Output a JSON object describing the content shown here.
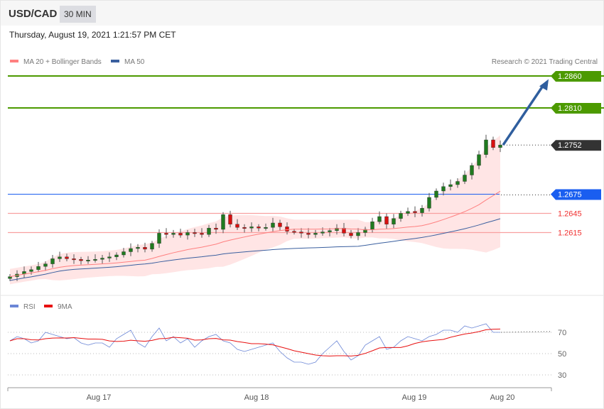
{
  "header": {
    "symbol": "USD/CAD",
    "timeframe": "30 MIN",
    "datetime": "Thursday, August 19, 2021 1:21:57 PM CET"
  },
  "chart_data": [
    {
      "type": "candlestick",
      "legend": [
        {
          "name": "MA 20 + Bollinger Bands",
          "color": "#ff8080"
        },
        {
          "name": "MA 50",
          "color": "#3a5f9f"
        }
      ],
      "credit": "Research © 2021 Trading Central",
      "ylim": [
        1.253,
        1.287
      ],
      "closes": [
        1.2546,
        1.255,
        1.2554,
        1.2557,
        1.2562,
        1.2566,
        1.2574,
        1.2577,
        1.2574,
        1.2573,
        1.2571,
        1.2572,
        1.2573,
        1.2575,
        1.2577,
        1.258,
        1.2585,
        1.259,
        1.2592,
        1.2589,
        1.2598,
        1.2614,
        1.2612,
        1.2614,
        1.2611,
        1.2615,
        1.2614,
        1.2612,
        1.2622,
        1.262,
        1.2643,
        1.2628,
        1.2623,
        1.2622,
        1.2624,
        1.2622,
        1.2623,
        1.263,
        1.2624,
        1.2617,
        1.2616,
        1.2614,
        1.2612,
        1.2614,
        1.2616,
        1.2618,
        1.2622,
        1.2614,
        1.261,
        1.2615,
        1.262,
        1.2632,
        1.264,
        1.2628,
        1.2637,
        1.2645,
        1.2648,
        1.2646,
        1.2653,
        1.267,
        1.268,
        1.2687,
        1.269,
        1.2695,
        1.2705,
        1.272,
        1.2737,
        1.276,
        1.2748,
        1.2752
      ],
      "levels": [
        {
          "value": "1.2860",
          "type": "target",
          "color": "#4c9a00"
        },
        {
          "value": "1.2810",
          "type": "target",
          "color": "#4c9a00"
        },
        {
          "value": "1.2752",
          "type": "current",
          "color": "#333333"
        },
        {
          "value": "1.2675",
          "type": "pivot",
          "color": "#1a5ef0"
        },
        {
          "value": "1.2645",
          "type": "support",
          "color": "#f03030"
        },
        {
          "value": "1.2615",
          "type": "support",
          "color": "#f03030"
        }
      ],
      "arrow": {
        "direction": "up",
        "from": 1.2752,
        "to": 1.2855,
        "color": "#2f5e9e"
      },
      "x_ticks": [
        "Aug 17",
        "Aug 18",
        "Aug 19",
        "Aug 20"
      ]
    },
    {
      "type": "line",
      "legend": [
        {
          "name": "RSI",
          "color": "#6b86d6"
        },
        {
          "name": "9MA",
          "color": "#e81010"
        }
      ],
      "y_ticks": [
        "70",
        "50",
        "30"
      ],
      "rsi": [
        62,
        66,
        64,
        60,
        62,
        70,
        68,
        66,
        64,
        65,
        60,
        58,
        60,
        60,
        56,
        64,
        68,
        72,
        60,
        56,
        66,
        74,
        62,
        66,
        60,
        64,
        56,
        62,
        66,
        68,
        62,
        60,
        54,
        52,
        54,
        56,
        58,
        60,
        52,
        46,
        42,
        42,
        40,
        42,
        50,
        56,
        62,
        52,
        44,
        48,
        58,
        62,
        66,
        54,
        56,
        62,
        66,
        64,
        62,
        66,
        68,
        72,
        72,
        70,
        76,
        74,
        76,
        78,
        70,
        70
      ]
    }
  ]
}
